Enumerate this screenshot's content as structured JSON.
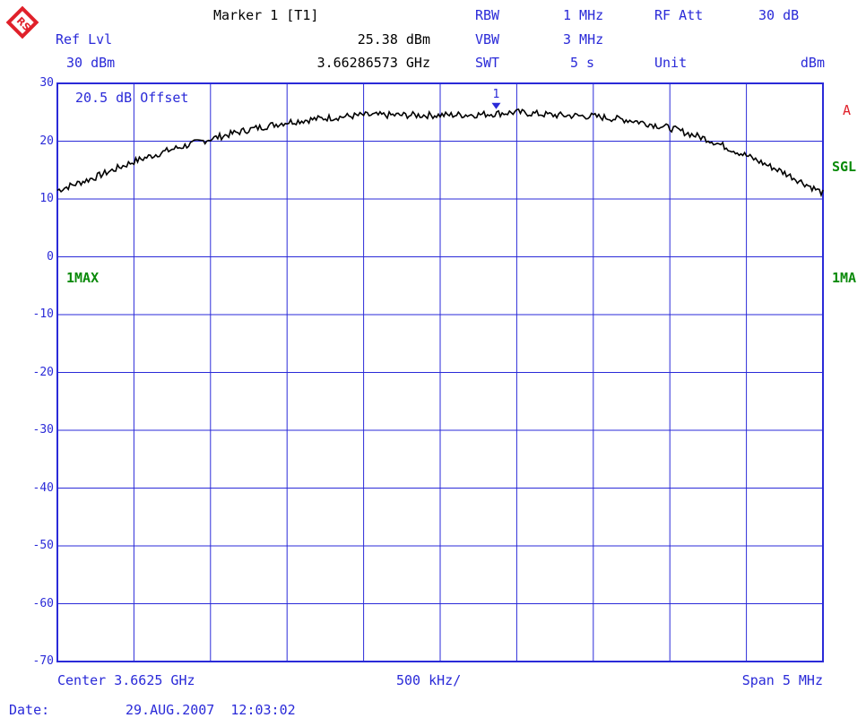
{
  "header": {
    "ref_lvl_label": "Ref Lvl",
    "ref_lvl_value": "30 dBm",
    "marker_title": "Marker 1 [T1]",
    "marker_level": "25.38 dBm",
    "marker_freq": "3.66286573 GHz",
    "rbw_label": "RBW",
    "rbw_value": "1 MHz",
    "vbw_label": "VBW",
    "vbw_value": "3 MHz",
    "swt_label": "SWT",
    "swt_value": "5 s",
    "rfatt_label": "RF Att",
    "rfatt_value": "30 dB",
    "unit_label": "Unit",
    "unit_value": "dBm"
  },
  "side": {
    "a": "A",
    "sgl": "SGL",
    "ma_right": "1MA",
    "max_left": "1MAX"
  },
  "offset_text": "20.5 dB Offset",
  "marker_label": "1",
  "footer": {
    "center": "Center 3.6625 GHz",
    "per_div": "500 kHz/",
    "span": "Span 5 MHz",
    "date_label": "Date:",
    "date_value": "29.AUG.2007  12:03:02"
  },
  "colors": {
    "grid": "#2a2ad8",
    "trace": "#000000",
    "text_blue": "#2a2ad8",
    "green": "#0a8a0a",
    "red": "#e0202a"
  },
  "chart_data": {
    "type": "line",
    "xlim": [
      3.66,
      3.665
    ],
    "ylim": [
      -70,
      30
    ],
    "yticks": [
      "30",
      "20",
      "10",
      "0",
      "-10",
      "-20",
      "-30",
      "-40",
      "-50",
      "-60",
      "-70"
    ],
    "x": [
      3.66,
      3.66025,
      3.6605,
      3.66075,
      3.661,
      3.66125,
      3.6615,
      3.66175,
      3.662,
      3.66225,
      3.6625,
      3.66275,
      3.663,
      3.66325,
      3.6635,
      3.66375,
      3.664,
      3.66425,
      3.6645,
      3.66475,
      3.665
    ],
    "y": [
      11.5,
      13.8,
      16.5,
      18.6,
      20.4,
      22.0,
      23.3,
      24.0,
      24.5,
      24.5,
      24.5,
      24.6,
      25.0,
      24.5,
      24.3,
      23.6,
      22.3,
      20.3,
      17.5,
      14.5,
      11.0
    ],
    "marker": {
      "x": 3.66286573,
      "y": 25.38
    }
  }
}
